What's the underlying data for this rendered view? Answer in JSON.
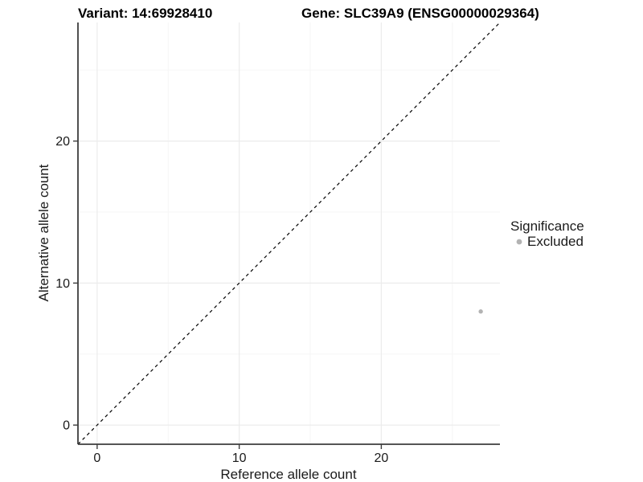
{
  "chart_data": {
    "type": "scatter",
    "title_left": "Variant: 14:69928410",
    "title_right": "Gene: SLC39A9 (ENSG00000029364)",
    "xlabel": "Reference allele count",
    "ylabel": "Alternative allele count",
    "xlim": [
      0,
      27
    ],
    "ylim": [
      0,
      27
    ],
    "expansion_frac": 0.05,
    "x_ticks": [
      0,
      10,
      20
    ],
    "y_ticks": [
      0,
      10,
      20
    ],
    "x_minor_ticks": [
      5,
      15,
      25
    ],
    "y_minor_ticks": [
      5,
      15,
      25
    ],
    "grid": "major and minor, very faint",
    "identity_line": {
      "style": "dashed",
      "color": "#000000",
      "meaning": "y = x"
    },
    "series": [
      {
        "name": "Excluded",
        "color": "#b3b3b3",
        "points": [
          {
            "x": 27,
            "y": 8
          }
        ]
      }
    ],
    "legend": {
      "title": "Significance",
      "position": "right",
      "items": [
        {
          "label": "Excluded",
          "color": "#b3b3b3"
        }
      ]
    }
  },
  "colors": {
    "background": "#ffffff",
    "axis_line": "#3d3d3d",
    "tick_mark": "#3d3d3d",
    "grid_major": "#ececec",
    "grid_minor": "#f5f5f5",
    "text": "#1a1a1a",
    "point": "#b3b3b3"
  }
}
